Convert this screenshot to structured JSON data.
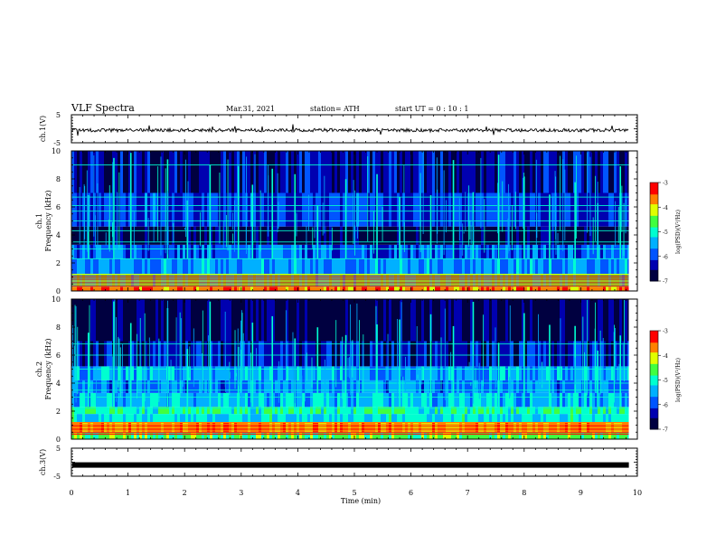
{
  "header": {
    "title": "VLF Spectra",
    "date": "Mar.31, 2021",
    "station": "station= ATH",
    "start": "start  UT =   0 : 10 : 1"
  },
  "chart_data": [
    {
      "id": "ch1-waveform",
      "type": "line",
      "ylabel": "ch.1(V)",
      "ylim": [
        -5,
        5
      ],
      "yticks": [
        "5",
        "-5"
      ],
      "xlim": [
        0,
        10
      ],
      "x_end": 9.85,
      "description_values": {
        "baseline": -0.5,
        "noise_amplitude": 0.6
      }
    },
    {
      "id": "ch1-spectrogram",
      "type": "heatmap",
      "ylabel": [
        "ch.1",
        "Frequency (kHz)"
      ],
      "ylim": [
        0,
        10
      ],
      "yticks": [
        "0",
        "2",
        "4",
        "6",
        "8",
        "10"
      ],
      "xlim": [
        0,
        10
      ],
      "x_end": 9.85,
      "colorbar": {
        "label": "log(PSD)(V²/Hz)",
        "range": [
          -7,
          -3
        ],
        "ticks": [
          "-3",
          "-4",
          "-5",
          "-6",
          "-7"
        ]
      },
      "bands": [
        {
          "f_low": 0.0,
          "f_high": 0.3,
          "level": -3.6
        },
        {
          "f_low": 0.3,
          "f_high": 1.2,
          "level": -4.8
        },
        {
          "f_low": 1.2,
          "f_high": 2.3,
          "level": -5.6
        },
        {
          "f_low": 2.3,
          "f_high": 3.3,
          "level": -5.9
        },
        {
          "f_low": 3.3,
          "f_high": 4.6,
          "level": -6.8
        },
        {
          "f_low": 4.6,
          "f_high": 7.0,
          "level": -6.1
        },
        {
          "f_low": 7.0,
          "f_high": 10.0,
          "level": -6.4
        }
      ],
      "lines_khz": [
        2.3,
        3.0,
        3.5,
        4.3,
        5.0,
        5.7,
        6.1,
        6.7,
        9.0
      ],
      "spike_times_min": [
        0.3,
        0.75,
        1.05,
        1.7,
        2.05,
        2.45,
        2.95,
        3.2,
        3.55,
        3.95,
        4.35,
        4.85,
        5.4,
        5.8,
        6.35,
        6.75,
        7.1,
        7.55,
        8.0,
        8.45,
        8.9,
        9.3,
        9.7
      ]
    },
    {
      "id": "ch2-spectrogram",
      "type": "heatmap",
      "ylabel": [
        "ch.2",
        "Frequency (kHz)"
      ],
      "ylim": [
        0,
        10
      ],
      "yticks": [
        "0",
        "2",
        "4",
        "6",
        "8",
        "10"
      ],
      "xlim": [
        0,
        10
      ],
      "x_end": 9.85,
      "colorbar": {
        "label": "log(PSD)(V²/Hz)",
        "range": [
          -7,
          -3
        ],
        "ticks": [
          "-3",
          "-4",
          "-5",
          "-6",
          "-7"
        ]
      },
      "bands": [
        {
          "f_low": 0.0,
          "f_high": 0.5,
          "level": -4.6
        },
        {
          "f_low": 0.5,
          "f_high": 1.2,
          "level": -3.8
        },
        {
          "f_low": 1.2,
          "f_high": 1.8,
          "level": -5.2
        },
        {
          "f_low": 1.8,
          "f_high": 2.3,
          "level": -4.9
        },
        {
          "f_low": 2.3,
          "f_high": 3.3,
          "level": -5.4
        },
        {
          "f_low": 3.3,
          "f_high": 4.2,
          "level": -5.7
        },
        {
          "f_low": 4.2,
          "f_high": 5.2,
          "level": -5.5
        },
        {
          "f_low": 5.2,
          "f_high": 7.0,
          "level": -6.3
        },
        {
          "f_low": 7.0,
          "f_high": 10.0,
          "level": -6.7
        }
      ],
      "lines_khz": [
        2.2,
        3.0,
        3.5,
        4.0,
        5.0,
        6.0,
        6.8
      ],
      "spike_times_min": [
        0.3,
        0.75,
        1.05,
        1.7,
        2.05,
        2.45,
        2.95,
        3.2,
        3.55,
        3.95,
        4.35,
        4.85,
        5.4,
        5.8,
        6.35,
        6.75,
        7.1,
        7.55,
        8.0,
        8.45,
        8.9,
        9.3,
        9.7
      ]
    },
    {
      "id": "ch3-waveform",
      "type": "line",
      "ylabel": "ch.3(V)",
      "ylim": [
        -5,
        5
      ],
      "yticks": [
        "5",
        "-5"
      ],
      "xlim": [
        0,
        10
      ],
      "x_end": 9.85,
      "description_values": {
        "baseline": -1.0,
        "noise_amplitude": 0.3
      }
    }
  ],
  "x_axis": {
    "label": "Time (min)",
    "ticks": [
      "0",
      "1",
      "2",
      "3",
      "4",
      "5",
      "6",
      "7",
      "8",
      "9",
      "10"
    ]
  },
  "colormap": [
    "#000040",
    "#0000b0",
    "#0055ff",
    "#00b0ff",
    "#00ffd0",
    "#40ff40",
    "#e0ff00",
    "#ff8000",
    "#ff0000",
    "#ffffff"
  ]
}
